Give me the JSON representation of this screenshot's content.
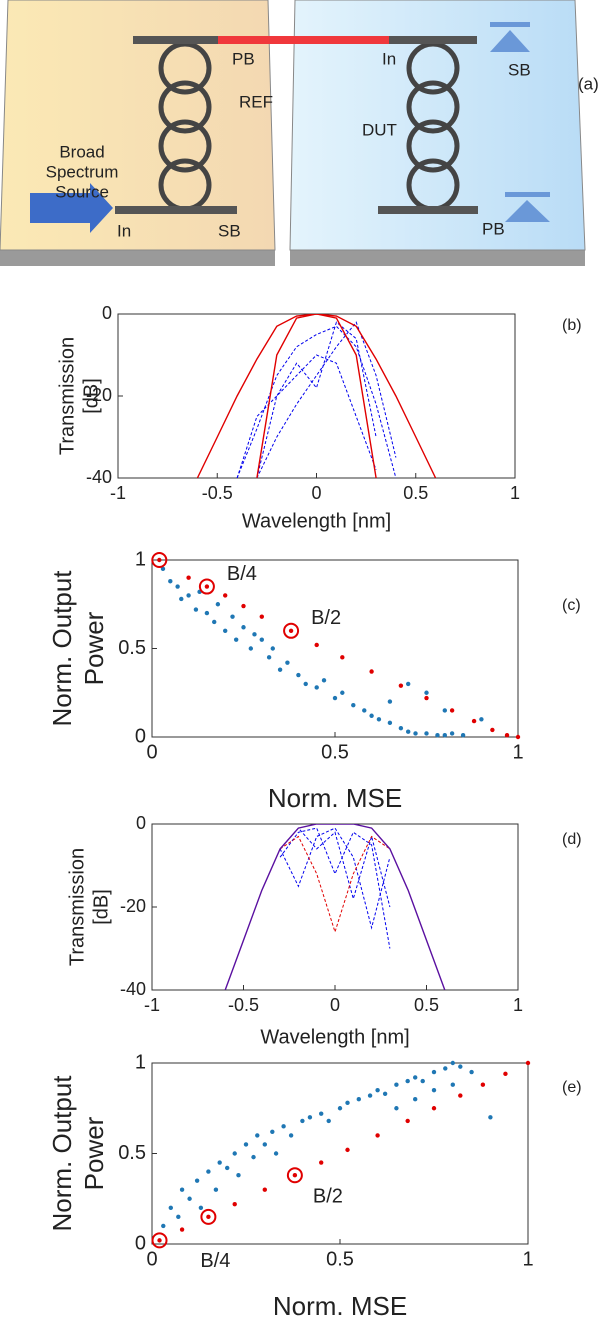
{
  "diagram": {
    "panel_label": "(a)",
    "labels": [
      "PB",
      "In",
      "REF",
      "DUT",
      "Broad",
      "Spectrum",
      "Source",
      "In",
      "SB",
      "SB",
      "PB"
    ]
  },
  "chart_data": [
    {
      "type": "line",
      "panel_label": "(b)",
      "xlabel": "Wavelength [nm]",
      "ylabel": [
        "Transmission",
        "[dB]"
      ],
      "xlim": [
        -1,
        1
      ],
      "xticks": [
        -1,
        -0.5,
        0,
        0.5,
        1
      ],
      "ylim": [
        -40,
        0
      ],
      "yticks": [
        -40,
        -20,
        0
      ],
      "x": [
        -0.6,
        -0.5,
        -0.4,
        -0.3,
        -0.2,
        -0.1,
        0,
        0.1,
        0.2,
        0.3,
        0.4,
        0.5,
        0.6
      ],
      "series": [
        {
          "color": "#0000ee",
          "dashed": true,
          "values": [
            null,
            null,
            -40,
            -28,
            -15,
            -8,
            -5,
            -3,
            -8,
            -22,
            -40,
            null,
            null
          ]
        },
        {
          "color": "#0000ee",
          "dashed": true,
          "values": [
            null,
            null,
            null,
            -40,
            -20,
            -12,
            -18,
            -2,
            -6,
            -30,
            null,
            null,
            null
          ]
        },
        {
          "color": "#0000ee",
          "dashed": true,
          "values": [
            null,
            null,
            -40,
            -25,
            -20,
            -15,
            -10,
            -12,
            -25,
            -38,
            null,
            null,
            null
          ]
        },
        {
          "color": "#0000ee",
          "dashed": true,
          "values": [
            null,
            null,
            null,
            -40,
            -30,
            -22,
            -15,
            -8,
            -2,
            -15,
            -35,
            null,
            null
          ]
        },
        {
          "color": "#e00000",
          "dashed": false,
          "values": [
            -40,
            -30,
            -20,
            -11,
            -3,
            -0.5,
            0,
            -0.5,
            -3,
            -11,
            -20,
            -30,
            -40
          ]
        },
        {
          "color": "#e00000",
          "dashed": false,
          "values": [
            null,
            null,
            null,
            -40,
            -10,
            -1,
            0,
            -1,
            -10,
            -40,
            null,
            null,
            null
          ]
        }
      ]
    },
    {
      "type": "scatter",
      "panel_label": "(c)",
      "xlabel": "Norm. MSE",
      "ylabel": [
        "Norm. Output",
        "Power"
      ],
      "xlim": [
        0,
        1
      ],
      "xticks": [
        0,
        0.5,
        1
      ],
      "ylim": [
        0,
        1
      ],
      "yticks": [
        0,
        0.5,
        1
      ],
      "series": [
        {
          "color": "#1f77b4",
          "x": [
            0.03,
            0.05,
            0.07,
            0.08,
            0.1,
            0.12,
            0.13,
            0.15,
            0.17,
            0.18,
            0.2,
            0.22,
            0.23,
            0.25,
            0.27,
            0.28,
            0.3,
            0.32,
            0.33,
            0.35,
            0.37,
            0.4,
            0.42,
            0.45,
            0.47,
            0.5,
            0.52,
            0.55,
            0.58,
            0.6,
            0.62,
            0.65,
            0.68,
            0.7,
            0.72,
            0.75,
            0.78,
            0.8,
            0.82,
            0.85,
            0.7,
            0.75,
            0.8,
            0.65,
            0.9
          ],
          "values": [
            0.95,
            0.88,
            0.85,
            0.78,
            0.8,
            0.72,
            0.82,
            0.7,
            0.65,
            0.75,
            0.6,
            0.68,
            0.55,
            0.62,
            0.5,
            0.58,
            0.55,
            0.45,
            0.5,
            0.38,
            0.42,
            0.35,
            0.3,
            0.28,
            0.32,
            0.22,
            0.25,
            0.18,
            0.15,
            0.12,
            0.1,
            0.08,
            0.05,
            0.03,
            0.02,
            0.02,
            0.01,
            0.01,
            0.02,
            0.01,
            0.3,
            0.25,
            0.15,
            0.2,
            0.1
          ]
        },
        {
          "color": "#e00000",
          "x": [
            0.02,
            0.1,
            0.15,
            0.2,
            0.25,
            0.3,
            0.38,
            0.45,
            0.52,
            0.6,
            0.68,
            0.75,
            0.82,
            0.88,
            0.93,
            0.97,
            1
          ],
          "values": [
            1,
            0.9,
            0.85,
            0.8,
            0.74,
            0.68,
            0.6,
            0.52,
            0.45,
            0.37,
            0.29,
            0.22,
            0.15,
            0.09,
            0.04,
            0.01,
            0
          ]
        }
      ],
      "highlights": [
        {
          "x": 0.02,
          "y": 1
        },
        {
          "x": 0.15,
          "y": 0.85,
          "label": "B/4"
        },
        {
          "x": 0.38,
          "y": 0.6,
          "label": "B/2"
        }
      ]
    },
    {
      "type": "line",
      "panel_label": "(d)",
      "xlabel": "Wavelength [nm]",
      "ylabel": [
        "Transmission",
        "[dB]"
      ],
      "xlim": [
        -1,
        1
      ],
      "xticks": [
        -1,
        -0.5,
        0,
        0.5,
        1
      ],
      "ylim": [
        -40,
        0
      ],
      "yticks": [
        -40,
        -20,
        0
      ],
      "x": [
        -0.6,
        -0.5,
        -0.4,
        -0.3,
        -0.2,
        -0.1,
        0,
        0.1,
        0.2,
        0.3,
        0.4,
        0.5,
        0.6
      ],
      "series": [
        {
          "color": "#0000ee",
          "dashed": true,
          "values": [
            null,
            null,
            null,
            -6,
            -15,
            -3,
            -1,
            -8,
            -25,
            -8,
            null,
            null,
            null
          ]
        },
        {
          "color": "#0000ee",
          "dashed": true,
          "values": [
            null,
            null,
            null,
            -8,
            -2,
            -1,
            -12,
            -2,
            -5,
            -30,
            null,
            null,
            null
          ]
        },
        {
          "color": "#0000ee",
          "dashed": true,
          "values": [
            null,
            null,
            null,
            -6,
            -1,
            -6,
            -2,
            -18,
            -3,
            -20,
            null,
            null,
            null
          ]
        },
        {
          "color": "#e00000",
          "dashed": true,
          "values": [
            null,
            null,
            null,
            -6,
            -3,
            -12,
            -26,
            -12,
            -3,
            -6,
            null,
            null,
            null
          ]
        },
        {
          "color": "#5a10a0",
          "dashed": false,
          "values": [
            -40,
            -28,
            -16,
            -6,
            -1,
            0,
            0,
            0,
            -1,
            -6,
            -16,
            -28,
            -40
          ]
        }
      ]
    },
    {
      "type": "scatter",
      "panel_label": "(e)",
      "xlabel": "Norm. MSE",
      "ylabel": [
        "Norm. Output",
        "Power"
      ],
      "xlim": [
        0,
        1
      ],
      "xticks": [
        0,
        0.5,
        1
      ],
      "ylim": [
        0,
        1
      ],
      "yticks": [
        0,
        0.5,
        1
      ],
      "series": [
        {
          "color": "#1f77b4",
          "x": [
            0.03,
            0.05,
            0.07,
            0.08,
            0.1,
            0.12,
            0.13,
            0.15,
            0.17,
            0.18,
            0.2,
            0.22,
            0.23,
            0.25,
            0.27,
            0.28,
            0.3,
            0.32,
            0.33,
            0.35,
            0.37,
            0.4,
            0.42,
            0.45,
            0.47,
            0.5,
            0.52,
            0.55,
            0.58,
            0.6,
            0.62,
            0.65,
            0.68,
            0.7,
            0.72,
            0.75,
            0.78,
            0.8,
            0.82,
            0.85,
            0.7,
            0.75,
            0.8,
            0.65,
            0.9
          ],
          "values": [
            0.1,
            0.2,
            0.15,
            0.3,
            0.25,
            0.35,
            0.2,
            0.4,
            0.3,
            0.45,
            0.42,
            0.5,
            0.38,
            0.55,
            0.48,
            0.6,
            0.55,
            0.62,
            0.5,
            0.65,
            0.6,
            0.68,
            0.7,
            0.72,
            0.68,
            0.75,
            0.78,
            0.8,
            0.82,
            0.85,
            0.83,
            0.88,
            0.9,
            0.92,
            0.9,
            0.95,
            0.97,
            1,
            0.98,
            0.95,
            0.8,
            0.85,
            0.88,
            0.75,
            0.7
          ]
        },
        {
          "color": "#e00000",
          "x": [
            0.02,
            0.08,
            0.15,
            0.22,
            0.3,
            0.38,
            0.45,
            0.52,
            0.6,
            0.68,
            0.75,
            0.82,
            0.88,
            0.94,
            1
          ],
          "values": [
            0.02,
            0.08,
            0.15,
            0.22,
            0.3,
            0.38,
            0.45,
            0.52,
            0.6,
            0.68,
            0.75,
            0.82,
            0.88,
            0.94,
            1
          ]
        }
      ],
      "highlights": [
        {
          "x": 0.02,
          "y": 0.02
        },
        {
          "x": 0.15,
          "y": 0.15,
          "label": "B/4"
        },
        {
          "x": 0.38,
          "y": 0.38,
          "label": "B/2"
        }
      ]
    }
  ]
}
